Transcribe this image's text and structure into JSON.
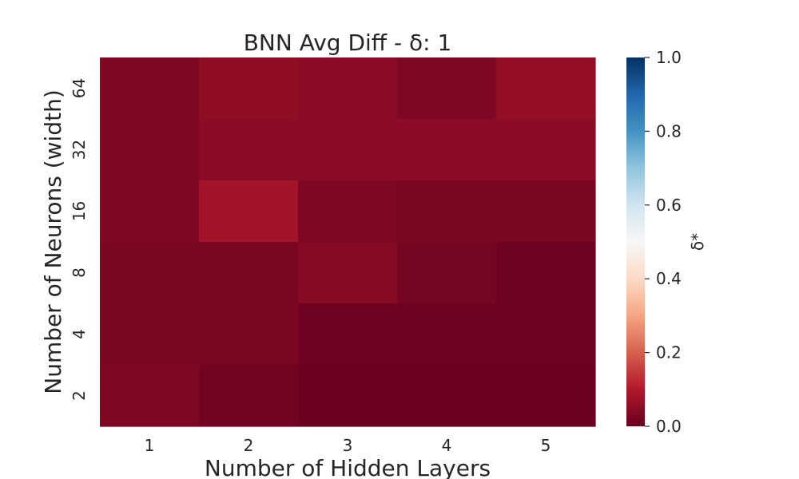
{
  "chart_data": {
    "type": "heatmap",
    "title": "BNN Avg Diff - δ: 1",
    "xlabel": "Number of Hidden Layers",
    "ylabel": "Number of Neurons (width)",
    "x_categories": [
      "1",
      "2",
      "3",
      "4",
      "5"
    ],
    "y_categories": [
      "64",
      "32",
      "16",
      "8",
      "4",
      "2"
    ],
    "values": [
      [
        0.035,
        0.055,
        0.045,
        0.03,
        0.06
      ],
      [
        0.035,
        0.05,
        0.045,
        0.048,
        0.05
      ],
      [
        0.035,
        0.08,
        0.03,
        0.025,
        0.025
      ],
      [
        0.025,
        0.025,
        0.04,
        0.02,
        0.01
      ],
      [
        0.025,
        0.025,
        0.01,
        0.01,
        0.01
      ],
      [
        0.03,
        0.015,
        0.005,
        0.005,
        0.005
      ]
    ],
    "colormap": "RdBu",
    "colorbar": {
      "label": "δ*",
      "range": [
        0.0,
        1.0
      ],
      "ticks": [
        "0.0",
        "0.2",
        "0.4",
        "0.6",
        "0.8",
        "1.0"
      ]
    }
  }
}
